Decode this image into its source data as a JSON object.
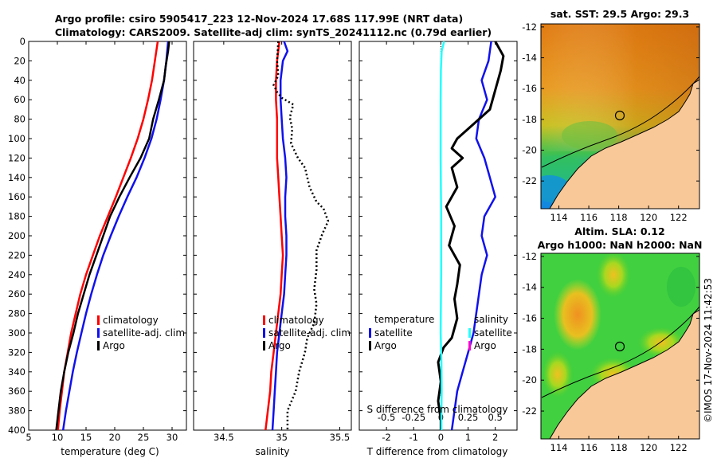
{
  "header": {
    "title_line1": "Argo profile: csiro 5905417_223 12-Nov-2024 17.68S 117.99E (NRT data)",
    "title_line2": "Climatology: CARS2009. Satellite-adj clim: synTS_20241112.nc (0.79d earlier)",
    "footer_stamp": "©IMOS 17-Nov-2024 11:42:53"
  },
  "colors": {
    "climatology": "#ff0000",
    "satellite": "#1010ee",
    "argo": "#000000",
    "s_satellite": "#22ffff",
    "s_argo": "#ff00cc"
  },
  "chart_data": [
    {
      "type": "line",
      "id": "temperature-profile",
      "xlabel": "temperature (deg C)",
      "ylabel": "",
      "xlim": [
        5,
        32.5
      ],
      "ylim": [
        400,
        0
      ],
      "xticks": [
        "5",
        "10",
        "15",
        "20",
        "25",
        "30"
      ],
      "yticks": [
        "0",
        "20",
        "40",
        "60",
        "80",
        "100",
        "120",
        "140",
        "160",
        "180",
        "200",
        "220",
        "240",
        "260",
        "280",
        "300",
        "320",
        "340",
        "360",
        "380",
        "400"
      ],
      "legend": [
        "climatology",
        "satellite-adj. clim",
        "Argo"
      ],
      "series": [
        {
          "name": "climatology",
          "points": [
            [
              27.5,
              0
            ],
            [
              27,
              20
            ],
            [
              26.5,
              40
            ],
            [
              25.8,
              60
            ],
            [
              25,
              80
            ],
            [
              24,
              100
            ],
            [
              22.8,
              120
            ],
            [
              21.5,
              140
            ],
            [
              20.2,
              160
            ],
            [
              18.8,
              180
            ],
            [
              17.4,
              200
            ],
            [
              16.2,
              220
            ],
            [
              15,
              240
            ],
            [
              14,
              260
            ],
            [
              13.2,
              280
            ],
            [
              12.4,
              300
            ],
            [
              11.8,
              320
            ],
            [
              11.2,
              340
            ],
            [
              10.8,
              360
            ],
            [
              10.4,
              380
            ],
            [
              10.1,
              400
            ]
          ]
        },
        {
          "name": "satellite-adj. clim",
          "points": [
            [
              29.3,
              0
            ],
            [
              29,
              20
            ],
            [
              28.6,
              40
            ],
            [
              28,
              60
            ],
            [
              27.3,
              80
            ],
            [
              26.4,
              100
            ],
            [
              25.2,
              120
            ],
            [
              23.8,
              140
            ],
            [
              22.2,
              160
            ],
            [
              20.7,
              180
            ],
            [
              19.3,
              200
            ],
            [
              18,
              220
            ],
            [
              16.9,
              240
            ],
            [
              15.9,
              260
            ],
            [
              15,
              280
            ],
            [
              14.2,
              300
            ],
            [
              13.4,
              320
            ],
            [
              12.7,
              340
            ],
            [
              12.1,
              360
            ],
            [
              11.5,
              380
            ],
            [
              11,
              400
            ]
          ]
        },
        {
          "name": "Argo",
          "points": [
            [
              29.5,
              0
            ],
            [
              29.3,
              10
            ],
            [
              28.9,
              25
            ],
            [
              28.6,
              40
            ],
            [
              27.7,
              60
            ],
            [
              26.7,
              80
            ],
            [
              26,
              100
            ],
            [
              24.5,
              120
            ],
            [
              22.6,
              140
            ],
            [
              20.8,
              160
            ],
            [
              19.2,
              180
            ],
            [
              18,
              200
            ],
            [
              16.8,
              220
            ],
            [
              15.6,
              240
            ],
            [
              14.6,
              260
            ],
            [
              13.6,
              280
            ],
            [
              12.8,
              300
            ],
            [
              11.9,
              320
            ],
            [
              11.2,
              340
            ],
            [
              10.6,
              360
            ],
            [
              10.2,
              380
            ],
            [
              9.8,
              400
            ]
          ]
        }
      ]
    },
    {
      "type": "line",
      "id": "salinity-profile",
      "xlabel": "salinity",
      "xlim": [
        34.24,
        35.6
      ],
      "ylim": [
        400,
        0
      ],
      "xticks": [
        "34.5",
        "35",
        "35.5"
      ],
      "legend": [
        "climatology",
        "satellite-adj. clim",
        "Argo"
      ],
      "series": [
        {
          "name": "climatology",
          "points": [
            [
              34.98,
              0
            ],
            [
              34.96,
              20
            ],
            [
              34.95,
              40
            ],
            [
              34.95,
              60
            ],
            [
              34.96,
              80
            ],
            [
              34.96,
              100
            ],
            [
              34.96,
              120
            ],
            [
              34.97,
              140
            ],
            [
              34.98,
              160
            ],
            [
              34.99,
              180
            ],
            [
              35.0,
              200
            ],
            [
              35.01,
              220
            ],
            [
              35.0,
              240
            ],
            [
              34.99,
              260
            ],
            [
              34.97,
              280
            ],
            [
              34.95,
              300
            ],
            [
              34.93,
              320
            ],
            [
              34.91,
              340
            ],
            [
              34.9,
              360
            ],
            [
              34.88,
              380
            ],
            [
              34.86,
              400
            ]
          ]
        },
        {
          "name": "satellite-adj. clim",
          "points": [
            [
              35.02,
              0
            ],
            [
              35.05,
              10
            ],
            [
              35.01,
              20
            ],
            [
              34.99,
              40
            ],
            [
              34.99,
              60
            ],
            [
              35.0,
              80
            ],
            [
              35.01,
              100
            ],
            [
              35.03,
              120
            ],
            [
              35.04,
              140
            ],
            [
              35.03,
              160
            ],
            [
              35.03,
              180
            ],
            [
              35.04,
              200
            ],
            [
              35.04,
              220
            ],
            [
              35.03,
              240
            ],
            [
              35.02,
              260
            ],
            [
              35.0,
              280
            ],
            [
              34.98,
              300
            ],
            [
              34.96,
              320
            ],
            [
              34.95,
              340
            ],
            [
              34.94,
              360
            ],
            [
              34.93,
              380
            ],
            [
              34.92,
              400
            ]
          ]
        },
        {
          "name": "Argo",
          "points": [
            [
              34.97,
              0
            ],
            [
              34.96,
              20
            ],
            [
              34.97,
              35
            ],
            [
              34.93,
              45
            ],
            [
              34.96,
              52
            ],
            [
              35.0,
              58
            ],
            [
              35.1,
              65
            ],
            [
              35.07,
              78
            ],
            [
              35.09,
              90
            ],
            [
              35.08,
              105
            ],
            [
              35.14,
              120
            ],
            [
              35.2,
              130
            ],
            [
              35.24,
              150
            ],
            [
              35.3,
              165
            ],
            [
              35.36,
              172
            ],
            [
              35.4,
              185
            ],
            [
              35.35,
              198
            ],
            [
              35.3,
              215
            ],
            [
              35.3,
              235
            ],
            [
              35.28,
              255
            ],
            [
              35.3,
              270
            ],
            [
              35.28,
              290
            ],
            [
              35.22,
              305
            ],
            [
              35.2,
              320
            ],
            [
              35.15,
              340
            ],
            [
              35.12,
              360
            ],
            [
              35.05,
              380
            ],
            [
              35.05,
              400
            ]
          ]
        }
      ]
    },
    {
      "type": "line",
      "id": "difference-profile",
      "xlabel": "T difference from climatology",
      "xlabel_top": "S difference from climatology",
      "xlim": [
        -3,
        2.8
      ],
      "ylim": [
        400,
        0
      ],
      "xticks": [
        "-2",
        "-1",
        "0",
        "1",
        "2"
      ],
      "xticks_top": [
        "-0.5",
        "-0.25",
        "0",
        "0.25",
        "0.5"
      ],
      "legend_t": {
        "heading": "temperature",
        "items": [
          "satellite",
          "Argo"
        ]
      },
      "legend_s": {
        "heading": "salinity",
        "items": [
          "satellite",
          "Argo"
        ]
      },
      "series": [
        {
          "name": "T satellite",
          "points": [
            [
              1.85,
              0
            ],
            [
              1.75,
              20
            ],
            [
              1.5,
              40
            ],
            [
              1.7,
              60
            ],
            [
              1.4,
              80
            ],
            [
              1.3,
              100
            ],
            [
              1.6,
              120
            ],
            [
              1.8,
              140
            ],
            [
              2.0,
              160
            ],
            [
              1.6,
              180
            ],
            [
              1.5,
              200
            ],
            [
              1.7,
              220
            ],
            [
              1.5,
              240
            ],
            [
              1.4,
              260
            ],
            [
              1.3,
              280
            ],
            [
              1.2,
              300
            ],
            [
              1.0,
              320
            ],
            [
              0.8,
              340
            ],
            [
              0.6,
              360
            ],
            [
              0.5,
              380
            ],
            [
              0.4,
              400
            ]
          ]
        },
        {
          "name": "T Argo",
          "points": [
            [
              2.0,
              0
            ],
            [
              2.3,
              15
            ],
            [
              2.2,
              30
            ],
            [
              2.0,
              50
            ],
            [
              1.8,
              70
            ],
            [
              1.2,
              85
            ],
            [
              0.6,
              100
            ],
            [
              0.4,
              110
            ],
            [
              0.8,
              120
            ],
            [
              0.4,
              130
            ],
            [
              0.6,
              150
            ],
            [
              0.2,
              170
            ],
            [
              0.5,
              190
            ],
            [
              0.3,
              210
            ],
            [
              0.7,
              230
            ],
            [
              0.6,
              250
            ],
            [
              0.5,
              265
            ],
            [
              0.6,
              285
            ],
            [
              0.4,
              305
            ],
            [
              0.1,
              315
            ],
            [
              -0.1,
              330
            ],
            [
              0.0,
              350
            ],
            [
              -0.1,
              370
            ],
            [
              0.0,
              390
            ],
            [
              0.0,
              400
            ]
          ]
        },
        {
          "name": "S satellite",
          "points": [
            [
              0.12,
              0
            ],
            [
              0.03,
              10
            ],
            [
              0.0,
              30
            ],
            [
              -0.01,
              60
            ],
            [
              -0.01,
              90
            ],
            [
              -0.01,
              120
            ],
            [
              0.0,
              150
            ],
            [
              0.01,
              180
            ],
            [
              0.01,
              210
            ],
            [
              0.01,
              240
            ],
            [
              0.0,
              270
            ],
            [
              -0.01,
              300
            ],
            [
              0.02,
              330
            ],
            [
              0.03,
              360
            ],
            [
              0.02,
              380
            ],
            [
              0.02,
              400
            ]
          ]
        }
      ]
    },
    {
      "type": "heatmap",
      "id": "sst-map",
      "title": "sat. SST: 29.5 Argo: 29.3",
      "xticks": [
        "114",
        "116",
        "118",
        "120",
        "122"
      ],
      "yticks": [
        "-12",
        "-14",
        "-16",
        "-18",
        "-20",
        "-22"
      ],
      "marker": {
        "lon": 117.99,
        "lat": -17.68
      }
    },
    {
      "type": "heatmap",
      "id": "sla-map",
      "title": "Altim. SLA: 0.12",
      "subtitle": "Argo h1000: NaN h2000: NaN",
      "xticks": [
        "114",
        "116",
        "118",
        "120",
        "122"
      ],
      "yticks": [
        "-12",
        "-14",
        "-16",
        "-18",
        "-20",
        "-22"
      ],
      "marker": {
        "lon": 117.99,
        "lat": -17.68
      }
    }
  ]
}
